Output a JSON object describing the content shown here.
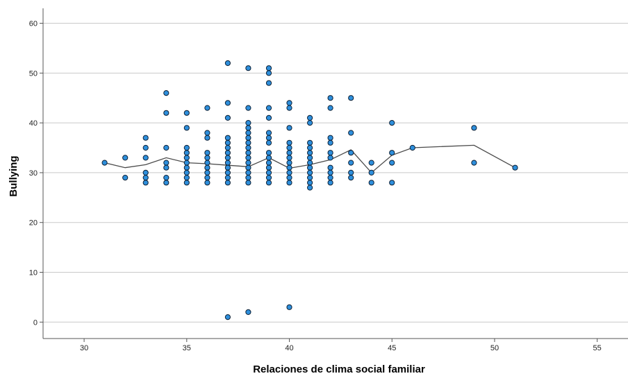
{
  "chart_data": {
    "type": "scatter",
    "xlabel": "Relaciones de clima social familiar",
    "ylabel": "Bullying",
    "xlim": [
      28,
      56.5
    ],
    "ylim": [
      -3.3,
      63
    ],
    "xticks": [
      30,
      35,
      40,
      45,
      50,
      55
    ],
    "yticks": [
      0,
      10,
      20,
      30,
      40,
      50,
      60
    ],
    "grid": "horizontal",
    "colors": {
      "point_fill": "#2e8fdc",
      "point_edge": "#0d1f33",
      "fit_line": "#4a4a4a",
      "grid": "#c9c9c9",
      "axis": "#555555"
    },
    "points": [
      [
        31,
        32
      ],
      [
        32,
        33
      ],
      [
        32,
        29
      ],
      [
        33,
        37
      ],
      [
        33,
        35
      ],
      [
        33,
        33
      ],
      [
        33,
        30
      ],
      [
        33,
        29
      ],
      [
        33,
        28
      ],
      [
        34,
        46
      ],
      [
        34,
        42
      ],
      [
        34,
        35
      ],
      [
        34,
        32
      ],
      [
        34,
        31
      ],
      [
        34,
        29
      ],
      [
        34,
        28
      ],
      [
        35,
        42
      ],
      [
        35,
        39
      ],
      [
        35,
        35
      ],
      [
        35,
        34
      ],
      [
        35,
        33
      ],
      [
        35,
        32
      ],
      [
        35,
        31
      ],
      [
        35,
        30
      ],
      [
        35,
        29
      ],
      [
        35,
        28
      ],
      [
        36,
        43
      ],
      [
        36,
        38
      ],
      [
        36,
        37
      ],
      [
        36,
        34
      ],
      [
        36,
        33
      ],
      [
        36,
        32
      ],
      [
        36,
        31
      ],
      [
        36,
        30
      ],
      [
        36,
        29
      ],
      [
        36,
        28
      ],
      [
        37,
        52
      ],
      [
        37,
        44
      ],
      [
        37,
        41
      ],
      [
        37,
        37
      ],
      [
        37,
        36
      ],
      [
        37,
        35
      ],
      [
        37,
        34
      ],
      [
        37,
        33
      ],
      [
        37,
        32
      ],
      [
        37,
        31
      ],
      [
        37,
        30
      ],
      [
        37,
        29
      ],
      [
        37,
        28
      ],
      [
        37,
        1
      ],
      [
        38,
        51
      ],
      [
        38,
        43
      ],
      [
        38,
        40
      ],
      [
        38,
        39
      ],
      [
        38,
        38
      ],
      [
        38,
        37
      ],
      [
        38,
        36
      ],
      [
        38,
        35
      ],
      [
        38,
        34
      ],
      [
        38,
        33
      ],
      [
        38,
        32
      ],
      [
        38,
        31
      ],
      [
        38,
        30
      ],
      [
        38,
        29
      ],
      [
        38,
        28
      ],
      [
        38,
        2
      ],
      [
        39,
        51
      ],
      [
        39,
        50
      ],
      [
        39,
        48
      ],
      [
        39,
        43
      ],
      [
        39,
        41
      ],
      [
        39,
        38
      ],
      [
        39,
        37
      ],
      [
        39,
        36
      ],
      [
        39,
        34
      ],
      [
        39,
        33
      ],
      [
        39,
        32
      ],
      [
        39,
        31
      ],
      [
        39,
        30
      ],
      [
        39,
        29
      ],
      [
        39,
        28
      ],
      [
        40,
        44
      ],
      [
        40,
        43
      ],
      [
        40,
        39
      ],
      [
        40,
        36
      ],
      [
        40,
        35
      ],
      [
        40,
        34
      ],
      [
        40,
        33
      ],
      [
        40,
        32
      ],
      [
        40,
        31
      ],
      [
        40,
        30
      ],
      [
        40,
        29
      ],
      [
        40,
        28
      ],
      [
        40,
        3
      ],
      [
        41,
        41
      ],
      [
        41,
        40
      ],
      [
        41,
        36
      ],
      [
        41,
        35
      ],
      [
        41,
        34
      ],
      [
        41,
        33
      ],
      [
        41,
        32
      ],
      [
        41,
        31
      ],
      [
        41,
        30
      ],
      [
        41,
        29
      ],
      [
        41,
        28
      ],
      [
        41,
        27
      ],
      [
        42,
        45
      ],
      [
        42,
        43
      ],
      [
        42,
        37
      ],
      [
        42,
        36
      ],
      [
        42,
        34
      ],
      [
        42,
        33
      ],
      [
        42,
        31
      ],
      [
        42,
        30
      ],
      [
        42,
        29
      ],
      [
        42,
        28
      ],
      [
        43,
        45
      ],
      [
        43,
        38
      ],
      [
        43,
        34
      ],
      [
        43,
        32
      ],
      [
        43,
        30
      ],
      [
        43,
        29
      ],
      [
        44,
        32
      ],
      [
        44,
        30
      ],
      [
        44,
        28
      ],
      [
        45,
        40
      ],
      [
        45,
        34
      ],
      [
        45,
        32
      ],
      [
        45,
        28
      ],
      [
        46,
        35
      ],
      [
        49,
        39
      ],
      [
        49,
        32
      ],
      [
        51,
        31
      ]
    ],
    "fit_line": [
      [
        31,
        32
      ],
      [
        32,
        31
      ],
      [
        33,
        31.6
      ],
      [
        34,
        33
      ],
      [
        35,
        32
      ],
      [
        36,
        31.8
      ],
      [
        37,
        31.5
      ],
      [
        38,
        31.2
      ],
      [
        39,
        33
      ],
      [
        40,
        30.9
      ],
      [
        41,
        31.6
      ],
      [
        42,
        32.6
      ],
      [
        43,
        34.6
      ],
      [
        44,
        30
      ],
      [
        45,
        33.5
      ],
      [
        46,
        35
      ],
      [
        49,
        35.5
      ],
      [
        51,
        31
      ]
    ]
  }
}
